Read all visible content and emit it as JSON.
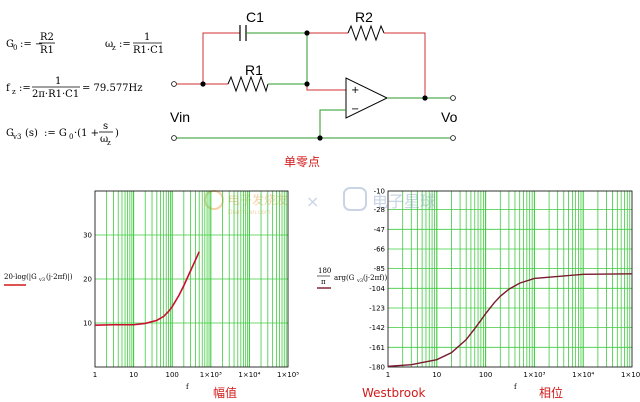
{
  "equations": {
    "g0_lhs": "G",
    "g0_sub": "0",
    "g0_assign": ":= −",
    "g0_num": "R2",
    "g0_den": "R1",
    "wz_lhs": "ω",
    "wz_sub": "z",
    "wz_assign": ":=",
    "wz_num": "1",
    "wz_den": "R1·C1",
    "fz_lhs": "f",
    "fz_sub": "z",
    "fz_assign": ":=",
    "fz_num": "1",
    "fz_den": "2π·R1·C1",
    "fz_value": "= 79.577Hz",
    "gv3_lhs": "G",
    "gv3_sub": "v3",
    "gv3_arg": "(s)",
    "gv3_assign": ":= G",
    "gv3_sub0": "0",
    "gv3_mid": "·(1 +",
    "gv3_num": "s",
    "gv3_den": "ω",
    "gv3_den_sub": "z",
    "gv3_close": ")"
  },
  "circuit": {
    "c1": "C1",
    "r1": "R1",
    "r2": "R2",
    "vin": "Vin",
    "vo": "Vo",
    "plus": "+",
    "minus": "−",
    "caption": "单零点"
  },
  "plot_labels": {
    "mag_ylabel_a": "20·log(|G",
    "mag_ylabel_sub": "v3",
    "mag_ylabel_b": "(j·2πf)|)",
    "phase_ylabel_num": "180",
    "phase_ylabel_den": "π",
    "phase_ylabel_a": "arg(G",
    "phase_ylabel_sub": "v3",
    "phase_ylabel_b": "(j·2πf))",
    "xvar": "f",
    "mag_caption": "幅值",
    "phase_caption": "相位",
    "author": "Westbrook",
    "xticks": [
      "1",
      "10",
      "100",
      "1×10³",
      "1×10⁴",
      "1×10⁵"
    ]
  },
  "watermark": {
    "brand1": "电子发烧友",
    "brand1_sub": "DianYuan.com",
    "cross": "×",
    "brand2": "电子星球"
  },
  "chart_data": [
    {
      "type": "line",
      "title": "幅值",
      "xlabel": "f",
      "ylabel": "20·log(|Gv3(j·2πf)|)",
      "xscale": "log",
      "xlim": [
        1,
        100000
      ],
      "ylim": [
        0,
        40
      ],
      "yticks": [
        10,
        20,
        30
      ],
      "grid": true,
      "series": [
        {
          "color": "#c8102e",
          "x": [
            1,
            3,
            10,
            20,
            40,
            60,
            80,
            100,
            150,
            200,
            300,
            400,
            500
          ],
          "y": [
            9.5,
            9.6,
            9.6,
            9.9,
            10.6,
            11.5,
            12.6,
            13.7,
            16.3,
            18.5,
            21.9,
            24.3,
            26.2
          ]
        }
      ]
    },
    {
      "type": "line",
      "title": "相位",
      "xlabel": "f",
      "ylabel": "180/π·arg(Gv3(j·2πf))",
      "xscale": "log",
      "xlim": [
        1,
        100000
      ],
      "ylim": [
        -180,
        -10
      ],
      "yticks": [
        -180,
        -161,
        -142,
        -123,
        -104,
        -85,
        -66,
        -47,
        -28,
        -10
      ],
      "grid": true,
      "series": [
        {
          "color": "#7a1a2e",
          "x": [
            1,
            3,
            10,
            20,
            40,
            60,
            80,
            100,
            150,
            200,
            300,
            500,
            1000,
            10000,
            100000
          ],
          "y": [
            -179.3,
            -177.8,
            -172.9,
            -166.1,
            -153.6,
            -142.9,
            -134.9,
            -128.5,
            -118.0,
            -111.7,
            -104.9,
            -99.0,
            -94.5,
            -90.5,
            -90.0
          ]
        }
      ]
    }
  ]
}
